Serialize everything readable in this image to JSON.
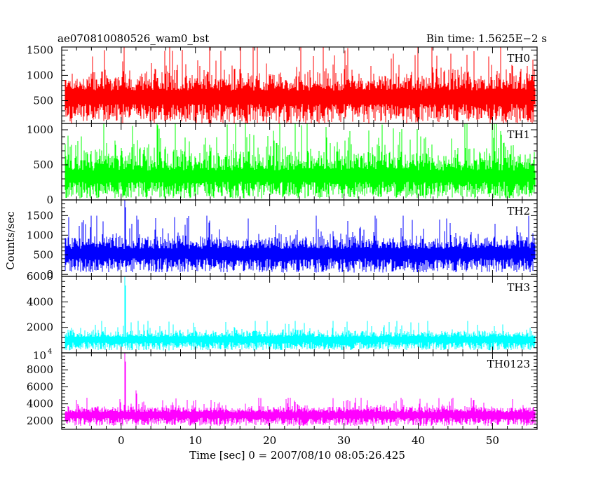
{
  "header": {
    "title": "ae070810080526_wam0_bst",
    "bin_time": "Bin time: 1.5625E−2 s"
  },
  "ylabel": "Counts/sec",
  "xlabel": "Time [sec] 0 = 2007/08/10 08:05:26.425",
  "chart_data": {
    "type": "line",
    "shared_x": {
      "range": [
        -8,
        56
      ],
      "ticks": [
        0,
        10,
        20,
        30,
        40,
        50
      ],
      "tick_labels": [
        "0",
        "10",
        "20",
        "30",
        "40",
        "50"
      ]
    },
    "panels": [
      {
        "name": "TH0",
        "color": "#ff0000",
        "ylim": [
          50,
          1560
        ],
        "yticks": [
          500,
          1000,
          1500
        ],
        "ytick_labels": [
          "500",
          "1000",
          "1500"
        ],
        "baseline": 50,
        "mean": 700,
        "spread": 220,
        "max_peak": 1560,
        "spikes": []
      },
      {
        "name": "TH1",
        "color": "#00ff00",
        "ylim": [
          0,
          1090
        ],
        "yticks": [
          0,
          500,
          1000
        ],
        "ytick_labels": [
          "0",
          "500",
          "1000"
        ],
        "baseline": 20,
        "mean": 420,
        "spread": 200,
        "max_peak": 1090,
        "spikes": []
      },
      {
        "name": "TH2",
        "color": "#0000ff",
        "ylim": [
          -50,
          1900
        ],
        "yticks": [
          0,
          500,
          1000,
          1500
        ],
        "ytick_labels": [
          "0",
          "500",
          "1000",
          "1500"
        ],
        "baseline": 50,
        "mean": 650,
        "spread": 200,
        "max_peak": 1500,
        "spikes": [
          {
            "x": 0.5,
            "y": 1900
          }
        ]
      },
      {
        "name": "TH3",
        "color": "#00ffff",
        "ylim": [
          0,
          6000
        ],
        "yticks": [
          2000,
          4000,
          6000
        ],
        "ytick_labels": [
          "2000",
          "4000",
          "6000"
        ],
        "baseline": 200,
        "mean": 1250,
        "spread": 280,
        "max_peak": 2500,
        "spikes": [
          {
            "x": 0.5,
            "y": 6000
          }
        ]
      },
      {
        "name": "TH0123",
        "color": "#ff00ff",
        "ylim": [
          1000,
          10000
        ],
        "yticks": [
          2000,
          4000,
          6000,
          8000
        ],
        "ytick_labels": [
          "2000",
          "4000",
          "6000",
          "8000"
        ],
        "top_label": "10",
        "top_label_exp": "4",
        "baseline": 1400,
        "mean": 3000,
        "spread": 450,
        "max_peak": 4700,
        "spikes": [
          {
            "x": 0.5,
            "y": 10000
          },
          {
            "x": 2.0,
            "y": 5600
          }
        ]
      }
    ]
  }
}
